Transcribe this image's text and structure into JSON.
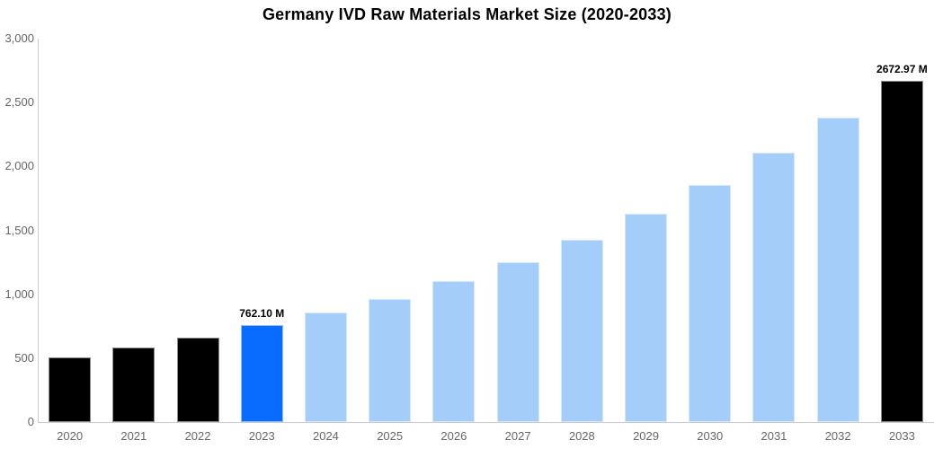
{
  "page": {
    "background_color": "#ffffff"
  },
  "chart_data": {
    "type": "bar",
    "title": "Germany IVD Raw Materials Market Size (2020-2033)",
    "xlabel": "",
    "ylabel": "",
    "unit": "M",
    "grid": false,
    "legend": "none",
    "ylim": [
      0,
      3000
    ],
    "categories": [
      "2020",
      "2021",
      "2022",
      "2023",
      "2024",
      "2025",
      "2026",
      "2027",
      "2028",
      "2029",
      "2030",
      "2031",
      "2032",
      "2033"
    ],
    "values": [
      505,
      582,
      660,
      762.1,
      855,
      965,
      1100,
      1250,
      1428,
      1630,
      1858,
      2105,
      2380,
      2672.97
    ],
    "point_labels": [
      "",
      "",
      "",
      "762.10 M",
      "",
      "",
      "",
      "",
      "",
      "",
      "",
      "",
      "",
      "2672.97 M"
    ],
    "bar_roles": [
      "historical",
      "historical",
      "historical",
      "highlight",
      "forecast",
      "forecast",
      "forecast",
      "forecast",
      "forecast",
      "forecast",
      "forecast",
      "forecast",
      "forecast",
      "final"
    ],
    "colors": {
      "historical": "#000000",
      "highlight": "#0a6bff",
      "forecast": "#a5cdfa",
      "final": "#000000",
      "axis_line": "#cccccc",
      "tick_label": "#666666",
      "title": "#000000",
      "data_label": "#000000"
    },
    "yticks": [
      {
        "value": 3000,
        "label": "3,000"
      },
      {
        "value": 2500,
        "label": "2,500"
      },
      {
        "value": 2000,
        "label": "2,000"
      },
      {
        "value": 1500,
        "label": "1,500"
      },
      {
        "value": 1000,
        "label": "1,000"
      },
      {
        "value": 500,
        "label": "500"
      },
      {
        "value": 0,
        "label": "0"
      }
    ]
  }
}
